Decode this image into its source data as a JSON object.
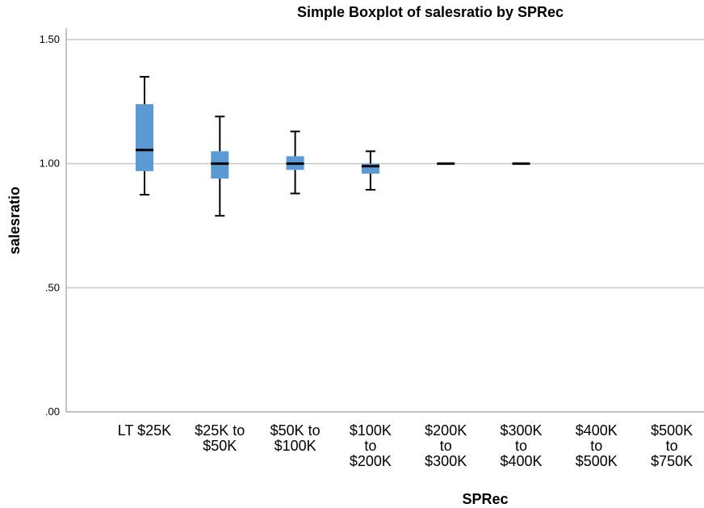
{
  "chart_data": {
    "type": "boxplot",
    "title": "Simple Boxplot of salesratio by SPRec",
    "xlabel": "SPRec",
    "ylabel": "salesratio",
    "ylim": [
      0,
      1.5
    ],
    "yticks": [
      0,
      0.5,
      1.0,
      1.5
    ],
    "ytick_labels": [
      ".00",
      ".50",
      "1.00",
      "1.50"
    ],
    "grid": "horizontal",
    "box_color": "#5b9bd5",
    "categories": [
      [
        "LT $25K"
      ],
      [
        "$25K to",
        "$50K"
      ],
      [
        "$50K to",
        "$100K"
      ],
      [
        "$100K",
        "to",
        "$200K"
      ],
      [
        "$200K",
        "to",
        "$300K"
      ],
      [
        "$300K",
        "to",
        "$400K"
      ],
      [
        "$400K",
        "to",
        "$500K"
      ],
      [
        "$500K",
        "to",
        "$750K"
      ]
    ],
    "boxes": [
      {
        "min": 0.875,
        "q1": 0.97,
        "median": 1.055,
        "q3": 1.24,
        "max": 1.35
      },
      {
        "min": 0.79,
        "q1": 0.94,
        "median": 1.0,
        "q3": 1.05,
        "max": 1.19
      },
      {
        "min": 0.88,
        "q1": 0.975,
        "median": 1.0,
        "q3": 1.03,
        "max": 1.13
      },
      {
        "min": 0.895,
        "q1": 0.96,
        "median": 0.99,
        "q3": 1.0,
        "max": 1.05
      },
      {
        "min": 1.0,
        "q1": 1.0,
        "median": 1.0,
        "q3": 1.0,
        "max": 1.0
      },
      {
        "min": 1.0,
        "q1": 1.0,
        "median": 1.0,
        "q3": 1.0,
        "max": 1.0
      },
      null,
      null
    ]
  }
}
